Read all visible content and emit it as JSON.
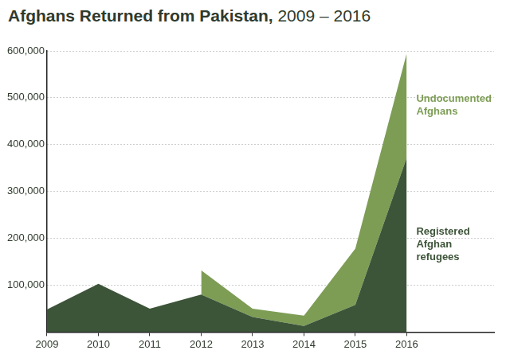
{
  "chart_data": {
    "type": "area",
    "title": "Afghans Returned from Pakistan, 2009 – 2016",
    "x": [
      2009,
      2010,
      2011,
      2012,
      2013,
      2014,
      2015,
      2016
    ],
    "xlim": [
      2009,
      2017.7
    ],
    "xticks": [
      2009,
      2010,
      2011,
      2012,
      2013,
      2014,
      2015,
      2016
    ],
    "ylim": [
      0,
      600000
    ],
    "yticks": [
      {
        "value": 100000,
        "label": "100,000"
      },
      {
        "value": 200000,
        "label": "200,000"
      },
      {
        "value": 300000,
        "label": "300,000"
      },
      {
        "value": 400000,
        "label": "400,000"
      },
      {
        "value": 500000,
        "label": "500,000"
      },
      {
        "value": 600000,
        "label": "600,000"
      }
    ],
    "grid": true,
    "stacked": true,
    "series": [
      {
        "name": "Registered Afghan refugees",
        "color": "#3c5438",
        "values": [
          48000,
          103000,
          50000,
          80000,
          32000,
          13000,
          58000,
          372000
        ]
      },
      {
        "name": "Undocumented Afghans",
        "color": "#7d9d55",
        "values": [
          null,
          null,
          null,
          52000,
          18000,
          22000,
          120000,
          223000
        ]
      }
    ]
  }
}
